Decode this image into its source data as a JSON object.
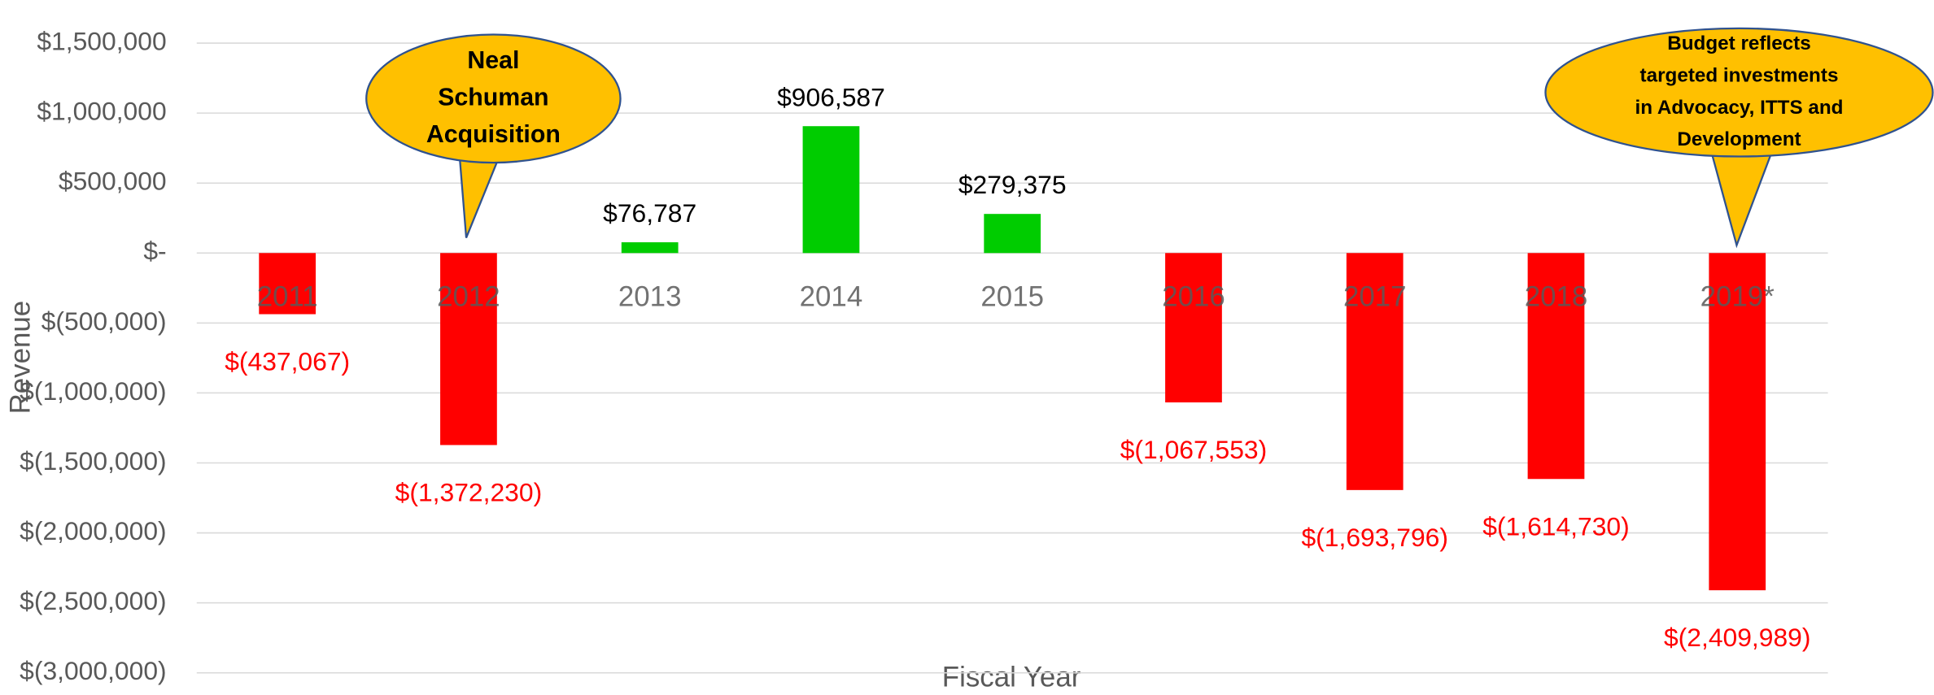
{
  "chart_data": {
    "type": "bar",
    "categories": [
      "2011",
      "2012",
      "2013",
      "2014",
      "2015",
      "2016",
      "2017",
      "2018",
      "2019*"
    ],
    "values": [
      -437067,
      -1372230,
      76787,
      906587,
      279375,
      -1067553,
      -1693796,
      -1614730,
      -2409989
    ],
    "value_labels": [
      "$(437,067)",
      "$(1,372,230)",
      "$76,787",
      "$906,587",
      "$279,375",
      "$(1,067,553)",
      "$(1,693,796)",
      "$(1,614,730)",
      "$(2,409,989)"
    ],
    "colors": [
      "#ff0000",
      "#ff0000",
      "#00cc00",
      "#00cc00",
      "#00cc00",
      "#ff0000",
      "#ff0000",
      "#ff0000",
      "#ff0000"
    ],
    "ylim": [
      -3000000,
      1500000
    ],
    "yticks": [
      {
        "value": -3000000,
        "label": "$(3,000,000)"
      },
      {
        "value": -2500000,
        "label": "$(2,500,000)"
      },
      {
        "value": -2000000,
        "label": "$(2,000,000)"
      },
      {
        "value": -1500000,
        "label": "$(1,500,000)"
      },
      {
        "value": -1000000,
        "label": "$(1,000,000)"
      },
      {
        "value": -500000,
        "label": "$(500,000)"
      },
      {
        "value": 0,
        "label": "$-"
      },
      {
        "value": 500000,
        "label": "$500,000"
      },
      {
        "value": 1000000,
        "label": "$1,000,000"
      },
      {
        "value": 1500000,
        "label": "$1,500,000"
      }
    ],
    "grid": true,
    "y_label": "Revenue",
    "x_label": "Fiscal Year",
    "annotations": [
      {
        "lines": [
          "Neal",
          "Schuman",
          "Acquisition"
        ]
      },
      {
        "lines": [
          "Budget reflects",
          "targeted investments",
          "in Advocacy, ITTS and",
          "Development"
        ]
      }
    ]
  }
}
